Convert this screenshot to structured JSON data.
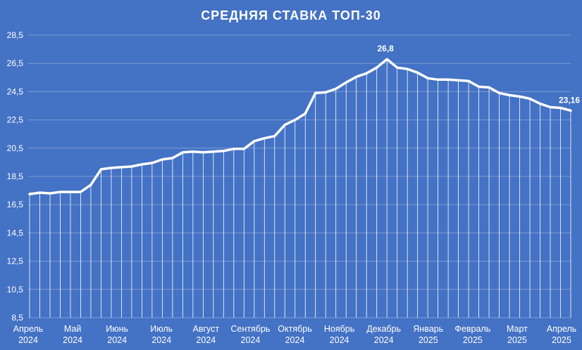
{
  "chart_data": {
    "type": "line",
    "title": "СРЕДНЯЯ СТАВКА ТОП-30",
    "xlabel": "",
    "ylabel": "",
    "ylim": [
      8.5,
      28.5
    ],
    "yticks": [
      "8,5",
      "10,5",
      "12,5",
      "14,5",
      "16,5",
      "18,5",
      "20,5",
      "22,5",
      "24,5",
      "26,5",
      "28,5"
    ],
    "x_tick_labels": [
      {
        "month": "Апрель",
        "year": "2024"
      },
      {
        "month": "Май",
        "year": "2024"
      },
      {
        "month": "Июнь",
        "year": "2024"
      },
      {
        "month": "Июль",
        "year": "2024"
      },
      {
        "month": "Август",
        "year": "2024"
      },
      {
        "month": "Сентябрь",
        "year": "2024"
      },
      {
        "month": "Октябрь",
        "year": "2024"
      },
      {
        "month": "Ноябрь",
        "year": "2024"
      },
      {
        "month": "Декабрь",
        "year": "2024"
      },
      {
        "month": "Январь",
        "year": "2025"
      },
      {
        "month": "Февраль",
        "year": "2025"
      },
      {
        "month": "Март",
        "year": "2025"
      },
      {
        "month": "Апрель",
        "year": "2025"
      }
    ],
    "series": [
      {
        "values": [
          17.25,
          17.35,
          17.3,
          17.4,
          17.4,
          17.4,
          17.9,
          19.0,
          19.1,
          19.15,
          19.2,
          19.35,
          19.45,
          19.7,
          19.8,
          20.2,
          20.25,
          20.2,
          20.25,
          20.3,
          20.45,
          20.45,
          21.0,
          21.2,
          21.35,
          22.15,
          22.5,
          22.95,
          24.4,
          24.45,
          24.7,
          25.15,
          25.55,
          25.8,
          26.2,
          26.8,
          26.2,
          26.1,
          25.85,
          25.45,
          25.35,
          25.35,
          25.3,
          25.25,
          24.85,
          24.8,
          24.4,
          24.25,
          24.15,
          24.0,
          23.65,
          23.4,
          23.35,
          23.16
        ]
      }
    ],
    "data_labels": [
      {
        "index": 35,
        "text": "26,8"
      },
      {
        "index": 53,
        "text": "23,16"
      }
    ],
    "colors": {
      "background": "#4472C4",
      "line": "#FFFFFF",
      "drop_lines": "#FFFFFF",
      "grid": "#7D9BD6"
    },
    "grid": true,
    "drop_lines": true,
    "legend": "none"
  }
}
